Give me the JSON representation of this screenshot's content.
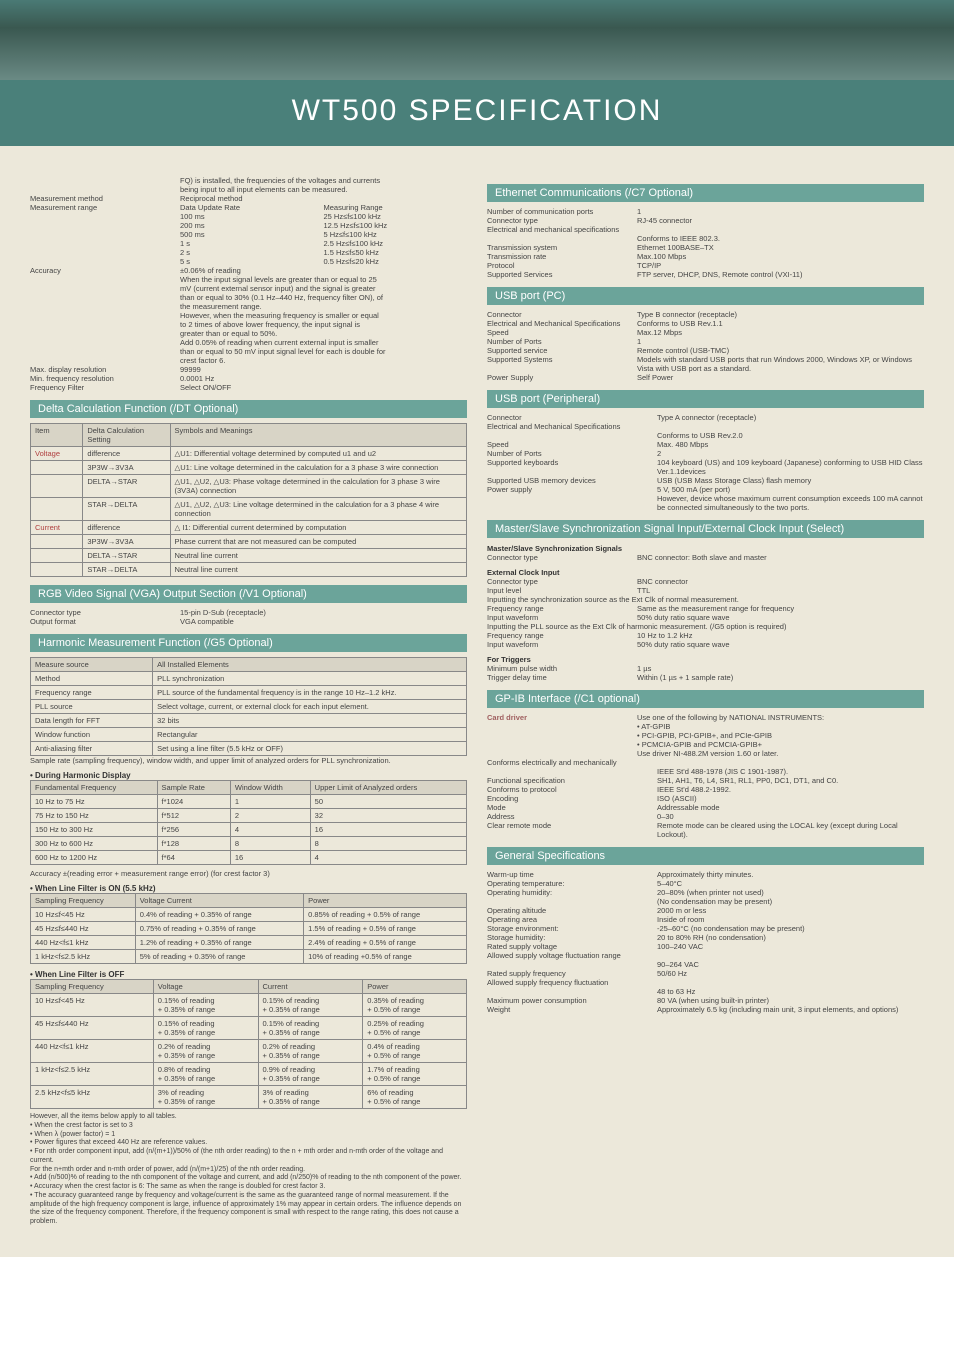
{
  "theme": {
    "page_bg": "#ece8da",
    "band_bg": "#6ba49a",
    "band_text": "#ffffff",
    "title_bg": "#4a807a",
    "text_color": "#444444",
    "border": "#888888",
    "tablehdr_bg": "#d8d4c6",
    "item_red": "#b04040"
  },
  "title": "WT500 SPECIFICATION",
  "fq_note_1": "FQ) is installed, the frequencies of the voltages and currents",
  "fq_note_2": "being input to all input elements can be measured.",
  "mm": {
    "k": "Measurement method",
    "v": "Reciprocal method"
  },
  "mr": {
    "k": "Measurement range",
    "h1": "Data Update Rate",
    "h2": "Measuring Range",
    "rows": [
      [
        "100 ms",
        "25 Hz≤f≤100 kHz"
      ],
      [
        "200 ms",
        "12.5 Hz≤f≤100 kHz"
      ],
      [
        "500 ms",
        "5 Hz≤f≤100 kHz"
      ],
      [
        "1 s",
        "2.5 Hz≤f≤100 kHz"
      ],
      [
        "2 s",
        "1.5 Hz≤f≤50 kHz"
      ],
      [
        "5 s",
        "0.5 Hz≤f≤20 kHz"
      ]
    ]
  },
  "acc": {
    "k": "Accuracy",
    "v": "±0.06% of reading",
    "lines": [
      "When the input signal levels are greater than or equal to 25",
      "mV (current external sensor input) and the signal is greater",
      "than or equal to 30% (0.1 Hz–440 Hz, frequency filter ON), of",
      "the measurement range.",
      "However, when the measuring frequency is smaller or equal",
      "to 2 times of above lower frequency, the input signal is",
      "greater than or equal to 50%.",
      "Add 0.05% of reading when current external input is smaller",
      "than or equal to 50 mV input signal level for each is double for",
      "crest factor 6."
    ]
  },
  "mdres": {
    "k": "Max. display resolution",
    "v": "99999"
  },
  "mfres": {
    "k": "Min. frequency resolution",
    "v": "0.0001 Hz"
  },
  "ffilt": {
    "k": "Frequency Filter",
    "v": "Select ON/OFF"
  },
  "band_delta": "Delta Calculation Function (/DT Optional)",
  "delta": {
    "head": [
      "Item",
      "Delta Calculation Setting",
      "Symbols and Meanings"
    ],
    "rows": [
      [
        "Voltage",
        "difference",
        "△U1: Differential voltage determined by computed u1 and u2"
      ],
      [
        "",
        "3P3W→3V3A",
        "△U1: Line voltage determined in the calculation for a 3 phase 3 wire connection"
      ],
      [
        "",
        "DELTA→STAR",
        "△U1, △U2, △U3: Phase voltage determined in the calculation for 3 phase 3 wire (3V3A) connection"
      ],
      [
        "",
        "STAR→DELTA",
        "△U1, △U2, △U3: Line voltage determined in the calculation for a 3 phase 4 wire connection"
      ],
      [
        "Current",
        "difference",
        "△ I1: Differential current determined by computation"
      ],
      [
        "",
        "3P3W→3V3A",
        "Phase current that are not measured can be computed"
      ],
      [
        "",
        "DELTA→STAR",
        "Neutral line current"
      ],
      [
        "",
        "STAR→DELTA",
        "Neutral line current"
      ]
    ]
  },
  "band_rgb": "RGB Video Signal (VGA) Output Section (/V1 Optional)",
  "rgb": {
    "ct": {
      "k": "Connector type",
      "v": "15-pin D-Sub (receptacle)"
    },
    "of": {
      "k": "Output format",
      "v": "VGA compatible"
    }
  },
  "band_harm": "Harmonic Measurement Function (/G5 Optional)",
  "harm": {
    "head": [
      "Measure source",
      "All Installed Elements"
    ],
    "rows": [
      [
        "Method",
        "PLL synchronization"
      ],
      [
        "Frequency range",
        "PLL source of the fundamental frequency is in the range 10 Hz–1.2 kHz."
      ],
      [
        "PLL source",
        "Select voltage, current, or external clock for each input element."
      ],
      [
        "Data length for FFT",
        "32 bits"
      ],
      [
        "Window function",
        "Rectangular"
      ],
      [
        "Anti-aliasing filter",
        "Set using a line filter (5.5 kHz or OFF)"
      ]
    ],
    "note": "Sample rate (sampling frequency), window width, and upper limit of analyzed orders for PLL synchronization."
  },
  "dhd": "• During Harmonic Display",
  "dhdtab": {
    "head": [
      "Fundamental Frequency",
      "Sample Rate",
      "Window Width",
      "Upper Limit of Analyzed orders"
    ],
    "rows": [
      [
        "10 Hz to 75 Hz",
        "f*1024",
        "1",
        "50"
      ],
      [
        "75 Hz to 150 Hz",
        "f*512",
        "2",
        "32"
      ],
      [
        "150 Hz to 300 Hz",
        "f*256",
        "4",
        "16"
      ],
      [
        "300 Hz to 600 Hz",
        "f*128",
        "8",
        "8"
      ],
      [
        "600 Hz to 1200 Hz",
        "f*64",
        "16",
        "4"
      ]
    ]
  },
  "accnote": "Accuracy ±(reading error + measurement range error) (for crest factor 3)",
  "wlon": "• When Line Filter is ON (5.5 kHz)",
  "wlontab": {
    "head": [
      "Sampling Frequency",
      "Voltage Current",
      "Power"
    ],
    "rows": [
      [
        "10 Hz≤f<45 Hz",
        "0.4% of reading + 0.35% of range",
        "0.85% of reading + 0.5% of range"
      ],
      [
        "45 Hz≤f≤440 Hz",
        "0.75% of reading + 0.35% of range",
        "1.5% of reading + 0.5% of range"
      ],
      [
        "440 Hz<f≤1 kHz",
        "1.2% of reading + 0.35% of range",
        "2.4% of reading + 0.5% of range"
      ],
      [
        "1 kHz<f≤2.5 kHz",
        "5% of reading + 0.35% of range",
        "10% of reading +0.5% of range"
      ]
    ]
  },
  "wloff": "• When Line Filter is OFF",
  "wlofftab": {
    "head": [
      "Sampling Frequency",
      "Voltage",
      "Current",
      "Power"
    ],
    "rows": [
      [
        "10 Hz≤f<45 Hz",
        "0.15% of reading\n+ 0.35% of range",
        "0.15% of reading\n+ 0.35% of range",
        "0.35% of reading\n+ 0.5% of range"
      ],
      [
        "45 Hz≤f≤440 Hz",
        "0.15% of reading\n+ 0.35% of range",
        "0.15% of reading\n+ 0.35% of range",
        "0.25% of reading\n+ 0.5% of range"
      ],
      [
        "440 Hz<f≤1 kHz",
        "0.2% of reading\n+ 0.35% of range",
        "0.2% of reading\n+ 0.35% of range",
        "0.4% of reading\n+ 0.5% of range"
      ],
      [
        "1 kHz<f≤2.5 kHz",
        "0.8% of reading\n+ 0.35% of range",
        "0.9% of reading\n+ 0.35% of range",
        "1.7% of reading\n+ 0.5% of range"
      ],
      [
        "2.5 kHz<f≤5 kHz",
        "3% of reading\n+ 0.35% of range",
        "3% of reading\n+ 0.35% of range",
        "6% of reading\n+ 0.5% of range"
      ]
    ]
  },
  "foot": [
    "However, all the items below apply to all tables.",
    "• When the crest factor is set to 3",
    "• When λ (power factor) = 1",
    "• Power figures that exceed 440 Hz are reference values.",
    "• For nth order component input, add (n/(m+1))/50% of (the nth order reading) to the n + mth order and n-mth order of the voltage and current.",
    "For the n+mth order and n-mth order of power, add (n/(m+1)/25) of the nth order reading.",
    "• Add (n/500)% of reading to the nth component of the voltage and current, and add (n/250)% of reading to the nth component of the power.",
    "• Accuracy when the crest factor is 6: The same as when the range is doubled for crest factor 3.",
    "• The accuracy guaranteed range by frequency and voltage/current is the same as the guaranteed range of normal measurement. If the amplitude of the high frequency component is large, influence of approximately 1% may appear in certain orders. The influence depends on the size of the frequency component. Therefore, if the frequency component is small with respect to the range rating, this does not cause a problem."
  ],
  "band_eth": "Ethernet Communications (/C7 Optional)",
  "eth": [
    [
      "Number of communication ports",
      "1"
    ],
    [
      "Connector type",
      "RJ-45 connector"
    ],
    [
      "Electrical and mechanical specifications",
      ""
    ],
    [
      "",
      "Conforms to IEEE 802.3."
    ],
    [
      "Transmission system",
      "Ethernet 100BASE–TX"
    ],
    [
      "Transmission rate",
      "Max.100 Mbps"
    ],
    [
      "Protocol",
      "TCP/IP"
    ],
    [
      "Supported Services",
      "FTP server, DHCP, DNS, Remote control (VXI-11)"
    ]
  ],
  "band_usbpc": "USB port (PC)",
  "usbpc": [
    [
      "Connector",
      "Type B connector (receptacle)"
    ],
    [
      "Electrical and Mechanical Specifications",
      "Conforms to USB Rev.1.1"
    ],
    [
      "Speed",
      "Max.12 Mbps"
    ],
    [
      "Number of Ports",
      "1"
    ],
    [
      "Supported service",
      "Remote control (USB-TMC)"
    ],
    [
      "Supported Systems",
      "Models with standard USB ports that run Windows 2000, Windows XP, or Windows Vista with USB port as a standard."
    ],
    [
      "Power Supply",
      "Self Power"
    ]
  ],
  "band_usbp": "USB port (Peripheral)",
  "usbp": [
    [
      "Connector",
      "Type A connector (receptacle)"
    ],
    [
      "Electrical and Mechanical Specifications",
      ""
    ],
    [
      "",
      "Conforms to USB Rev.2.0"
    ],
    [
      "Speed",
      "Max. 480 Mbps"
    ],
    [
      "Number of Ports",
      "2"
    ],
    [
      "Supported keyboards",
      "104 keyboard (US) and 109 keyboard (Japanese) conforming to USB HID Class Ver.1.1devices"
    ],
    [
      "Supported USB memory devices",
      "USB (USB Mass Storage Class) flash memory"
    ],
    [
      "Power supply",
      "5 V, 500 mA (per port)"
    ],
    [
      "",
      "However, device whose maximum current consumption exceeds 100 mA cannot be connected simultaneously to the two ports."
    ]
  ],
  "band_ms": "Master/Slave Synchronization Signal Input/External Clock Input (Select)",
  "ms_head1": "Master/Slave Synchronization Signals",
  "ms_ct": {
    "k": "Connector type",
    "v": "BNC connector: Both slave and master"
  },
  "ms_head2": "External Clock Input",
  "ms_ext": [
    [
      "Connector type",
      "BNC connector"
    ],
    [
      "Input level",
      "TTL"
    ]
  ],
  "ms_sync_line": "Inputting the synchronization source as the Ext Clk of normal measurement.",
  "ms_sync_rows": [
    [
      "Frequency range",
      "Same as the measurement range for frequency"
    ],
    [
      "Input waveform",
      "50% duty ratio square wave"
    ]
  ],
  "ms_pll_line": "Inputting the PLL source as the Ext Clk of harmonic measurement. (/G5 option is required)",
  "ms_pll_rows": [
    [
      "Frequency range",
      "10 Hz to 1.2 kHz"
    ],
    [
      "Input waveform",
      "50% duty ratio square wave"
    ]
  ],
  "ms_trig_head": "For Triggers",
  "ms_trig_rows": [
    [
      "Minimum pulse width",
      "1 µs"
    ],
    [
      "Trigger delay time",
      "Within (1 µs + 1 sample rate)"
    ]
  ],
  "band_gpib": "GP-IB Interface (/C1 optional)",
  "gpib_cd_k": "Card driver",
  "gpib_cd_lines": [
    "Use one of the following by NATIONAL INSTRUMENTS:",
    "• AT-GPIB",
    "• PCI-GPIB, PCI-GPIB+, and PCIe-GPIB",
    "• PCMCIA-GPIB and PCMCIA-GPIB+",
    "Use driver NI-488.2M version 1.60 or later."
  ],
  "gpib_rows": [
    [
      "Conforms electrically and mechanically",
      ""
    ],
    [
      "",
      "IEEE St'd 488-1978 (JIS C 1901-1987)."
    ],
    [
      "Functional specification",
      "SH1, AH1, T6, L4, SR1, RL1, PP0, DC1, DT1, and C0."
    ],
    [
      "Conforms to protocol",
      "IEEE St'd 488.2-1992."
    ],
    [
      "Encoding",
      "ISO (ASCII)"
    ],
    [
      "Mode",
      "Addressable mode"
    ],
    [
      "Address",
      "0–30"
    ],
    [
      "Clear remote mode",
      "Remote mode can be cleared using the LOCAL key (except during Local Lockout)."
    ]
  ],
  "band_gen": "General Specifications",
  "gen": [
    [
      "Warm-up time",
      "Approximately thirty minutes."
    ],
    [
      "Operating temperature:",
      "5–40°C"
    ],
    [
      "Operating humidity:",
      "20–80% (when printer not used)\n(No condensation may be present)"
    ],
    [
      "Operating altitude",
      "2000 m or less"
    ],
    [
      "Operating area",
      "Inside of room"
    ],
    [
      "Storage environment:",
      "-25–60°C (no condensation may be present)"
    ],
    [
      "Storage humidity:",
      "20 to 80% RH (no condensation)"
    ],
    [
      "Rated supply voltage",
      "100–240 VAC"
    ],
    [
      "Allowed supply voltage fluctuation range",
      ""
    ],
    [
      "",
      "90–264 VAC"
    ],
    [
      "Rated supply frequency",
      "50/60 Hz"
    ],
    [
      "Allowed supply frequency fluctuation",
      ""
    ],
    [
      "",
      "48 to 63 Hz"
    ],
    [
      "Maximum power consumption",
      "80 VA (when using built-in printer)"
    ],
    [
      "Weight",
      "Approximately 6.5 kg (including main unit, 3 input elements, and options)"
    ]
  ]
}
